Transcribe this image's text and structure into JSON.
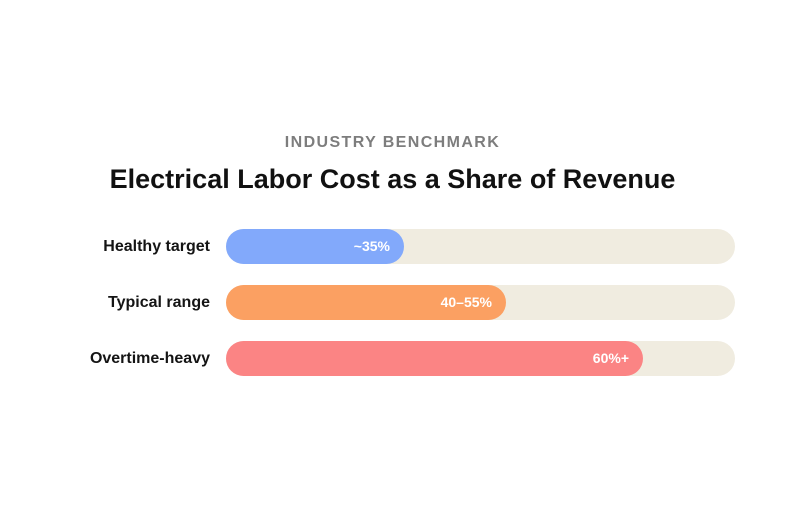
{
  "header": {
    "eyebrow": "INDUSTRY BENCHMARK",
    "title": "Electrical Labor Cost as a Share of Revenue"
  },
  "chart_data": {
    "type": "bar",
    "orientation": "horizontal",
    "title": "Electrical Labor Cost as a Share of Revenue",
    "categories": [
      "Healthy target",
      "Typical range",
      "Overtime-heavy"
    ],
    "values": [
      35,
      55,
      82
    ],
    "value_labels": [
      "~35%",
      "40–55%",
      "60%+"
    ],
    "xlim": [
      0,
      100
    ],
    "colors": [
      "#82a9fb",
      "#fba062",
      "#fb8484"
    ],
    "track_color": "#f0ece0",
    "grid": false,
    "legend": "none"
  }
}
